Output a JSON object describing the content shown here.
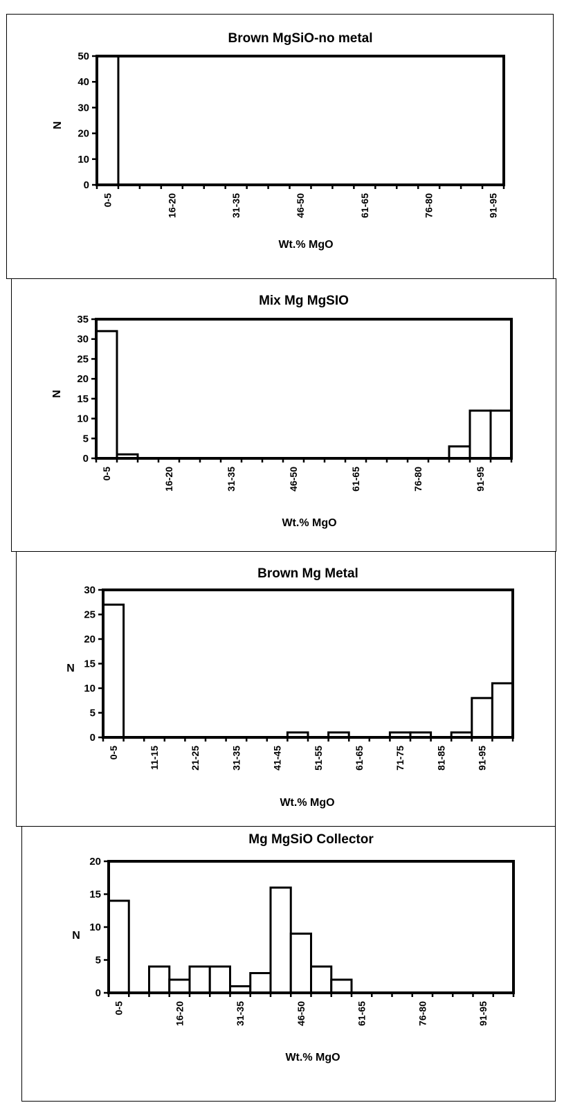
{
  "chart_data": [
    {
      "type": "bar",
      "title": "Brown MgSiO-no metal",
      "xlabel": "Wt.% MgO",
      "ylabel": "N",
      "ylim": [
        0,
        50
      ],
      "yticks": [
        0,
        10,
        20,
        30,
        40,
        50
      ],
      "bin_count": 19,
      "tick_labels": [
        "0-5",
        "16-20",
        "31-35",
        "46-50",
        "61-65",
        "76-80",
        "91-95"
      ],
      "tick_label_bins": [
        0,
        3,
        6,
        9,
        12,
        15,
        18
      ],
      "values": [
        50,
        0,
        0,
        0,
        0,
        0,
        0,
        0,
        0,
        0,
        0,
        0,
        0,
        0,
        0,
        0,
        0,
        0,
        0
      ],
      "grid": false,
      "legend": "none"
    },
    {
      "type": "bar",
      "title": "Mix Mg MgSIO",
      "xlabel": "Wt.% MgO",
      "ylabel": "N",
      "ylim": [
        0,
        35
      ],
      "yticks": [
        0,
        5,
        10,
        15,
        20,
        25,
        30,
        35
      ],
      "bin_count": 20,
      "tick_labels": [
        "0-5",
        "16-20",
        "31-35",
        "46-50",
        "61-65",
        "76-80",
        "91-95"
      ],
      "tick_label_bins": [
        0,
        3,
        6,
        9,
        12,
        15,
        18
      ],
      "values": [
        32,
        1,
        0,
        0,
        0,
        0,
        0,
        0,
        0,
        0,
        0,
        0,
        0,
        0,
        0,
        0,
        0,
        3,
        12,
        12
      ],
      "grid": false,
      "legend": "none"
    },
    {
      "type": "bar",
      "title": "Brown Mg Metal",
      "xlabel": "Wt.% MgO",
      "ylabel": "N",
      "ylim": [
        0,
        30
      ],
      "yticks": [
        0,
        5,
        10,
        15,
        20,
        25,
        30
      ],
      "bin_count": 20,
      "tick_labels": [
        "0-5",
        "11-15",
        "21-25",
        "31-35",
        "41-45",
        "51-55",
        "61-65",
        "71-75",
        "81-85",
        "91-95"
      ],
      "tick_label_bins": [
        0,
        2,
        4,
        6,
        8,
        10,
        12,
        14,
        16,
        18
      ],
      "values": [
        27,
        0,
        0,
        0,
        0,
        0,
        0,
        0,
        0,
        1,
        0,
        1,
        0,
        0,
        1,
        1,
        0,
        1,
        8,
        11
      ],
      "grid": false,
      "legend": "none"
    },
    {
      "type": "bar",
      "title": "Mg MgSiO Collector",
      "xlabel": "Wt.% MgO",
      "ylabel": "N",
      "ylim": [
        0,
        20
      ],
      "yticks": [
        0,
        5,
        10,
        15,
        20
      ],
      "bin_count": 20,
      "tick_labels": [
        "0-5",
        "16-20",
        "31-35",
        "46-50",
        "61-65",
        "76-80",
        "91-95"
      ],
      "tick_label_bins": [
        0,
        3,
        6,
        9,
        12,
        15,
        18
      ],
      "values": [
        14,
        0,
        4,
        2,
        4,
        4,
        1,
        3,
        16,
        9,
        4,
        2,
        0,
        0,
        0,
        0,
        0,
        0,
        0,
        0
      ],
      "grid": false,
      "legend": "none"
    }
  ]
}
